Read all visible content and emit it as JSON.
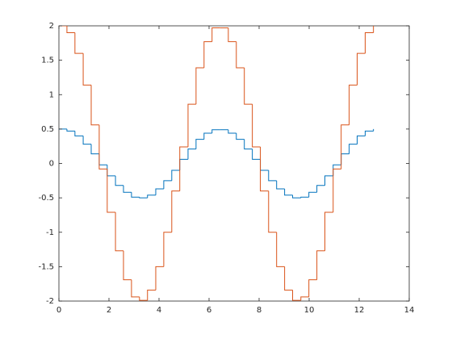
{
  "chart_data": {
    "type": "stairs",
    "x": [
      0,
      0.32,
      0.64,
      0.97,
      1.29,
      1.61,
      1.93,
      2.26,
      2.58,
      2.9,
      3.22,
      3.54,
      3.87,
      4.19,
      4.51,
      4.83,
      5.16,
      5.48,
      5.8,
      6.12,
      6.44,
      6.77,
      7.09,
      7.41,
      7.73,
      8.05,
      8.38,
      8.7,
      9.02,
      9.34,
      9.67,
      9.99,
      10.31,
      10.63,
      10.96,
      11.28,
      11.6,
      11.92,
      12.24,
      12.57
    ],
    "series": [
      {
        "color": "#0072bd",
        "values": [
          0.5,
          0.47,
          0.4,
          0.28,
          0.14,
          -0.02,
          -0.18,
          -0.32,
          -0.42,
          -0.49,
          -0.5,
          -0.46,
          -0.37,
          -0.25,
          -0.1,
          0.06,
          0.21,
          0.35,
          0.44,
          0.49,
          0.49,
          0.44,
          0.35,
          0.21,
          0.06,
          -0.1,
          -0.25,
          -0.37,
          -0.46,
          -0.5,
          -0.49,
          -0.42,
          -0.32,
          -0.18,
          -0.02,
          0.14,
          0.28,
          0.4,
          0.47,
          0.5
        ]
      },
      {
        "color": "#d95319",
        "values": [
          2,
          1.9,
          1.6,
          1.14,
          0.56,
          -0.08,
          -0.71,
          -1.27,
          -1.69,
          -1.94,
          -1.99,
          -1.84,
          -1.5,
          -1,
          -0.4,
          0.24,
          0.86,
          1.39,
          1.77,
          1.97,
          1.97,
          1.77,
          1.39,
          0.86,
          0.24,
          -0.4,
          -1,
          -1.5,
          -1.84,
          -1.99,
          -1.94,
          -1.69,
          -1.27,
          -0.71,
          -0.08,
          0.56,
          1.14,
          1.6,
          1.9,
          2
        ]
      }
    ],
    "xlim": [
      0,
      14
    ],
    "xticks": [
      0,
      2,
      4,
      6,
      8,
      10,
      12,
      14
    ],
    "ylim": [
      -2,
      2
    ],
    "yticks": [
      -2,
      -1.5,
      -1,
      -0.5,
      0,
      0.5,
      1,
      1.5,
      2
    ]
  }
}
